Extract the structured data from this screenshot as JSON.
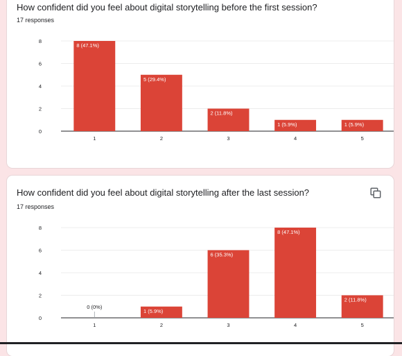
{
  "accent_color": "#db4437",
  "questions": [
    {
      "title": "How confident did you feel about digital storytelling before the first session?",
      "responses": "17 responses"
    },
    {
      "title": "How confident did you feel about digital storytelling after the last session?",
      "responses": "17 responses",
      "copy_icon": "copy-chart-icon"
    }
  ],
  "chart_data": [
    {
      "type": "bar",
      "categories": [
        "1",
        "2",
        "3",
        "4",
        "5"
      ],
      "values": [
        8,
        5,
        2,
        1,
        1
      ],
      "labels": [
        "8 (47.1%)",
        "5 (29.4%)",
        "2 (11.8%)",
        "1 (5.9%)",
        "1 (5.9%)"
      ],
      "yticks": [
        "0",
        "2",
        "4",
        "6",
        "8"
      ],
      "ylim": [
        0,
        8
      ],
      "grid": true,
      "color": "#db4437"
    },
    {
      "type": "bar",
      "categories": [
        "1",
        "2",
        "3",
        "4",
        "5"
      ],
      "values": [
        0,
        1,
        6,
        8,
        2
      ],
      "labels": [
        "0 (0%)",
        "1 (5.9%)",
        "6 (35.3%)",
        "8 (47.1%)",
        "2 (11.8%)"
      ],
      "yticks": [
        "0",
        "2",
        "4",
        "6",
        "8"
      ],
      "ylim": [
        0,
        8
      ],
      "grid": true,
      "color": "#db4437"
    }
  ]
}
